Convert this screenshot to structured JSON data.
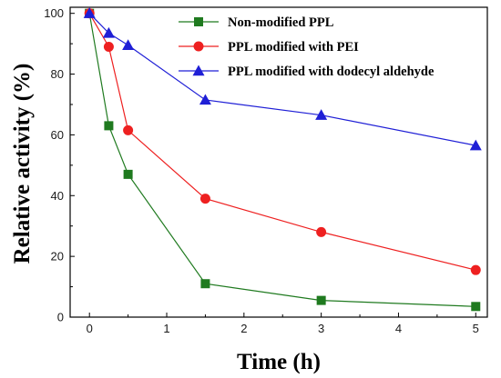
{
  "chart_data": {
    "type": "line",
    "title": "",
    "xlabel": "Time (h)",
    "ylabel": "Relative activity (%)",
    "xlim": [
      -0.25,
      5.15
    ],
    "ylim": [
      0,
      102
    ],
    "xticks": [
      0,
      1,
      2,
      3,
      4,
      5
    ],
    "yticks": [
      0,
      20,
      40,
      60,
      80,
      100
    ],
    "grid": false,
    "legend": "top-right",
    "series": [
      {
        "name": "Non-modified PPL",
        "color": "#1f7a1f",
        "marker": "square",
        "x": [
          0,
          0.25,
          0.5,
          1.5,
          3,
          5
        ],
        "y": [
          100,
          63,
          47,
          11,
          5.5,
          3.5
        ]
      },
      {
        "name": "PPL modified with PEI",
        "color": "#ee2020",
        "marker": "circle",
        "x": [
          0,
          0.25,
          0.5,
          1.5,
          3,
          5
        ],
        "y": [
          100,
          89,
          61.5,
          39,
          28,
          15.5
        ]
      },
      {
        "name": "PPL modified with dodecyl aldehyde",
        "color": "#1f1fd6",
        "marker": "triangle",
        "x": [
          0,
          0.25,
          0.5,
          1.5,
          3,
          5
        ],
        "y": [
          100,
          93.5,
          89.5,
          71.5,
          66.5,
          56.5
        ]
      }
    ]
  }
}
